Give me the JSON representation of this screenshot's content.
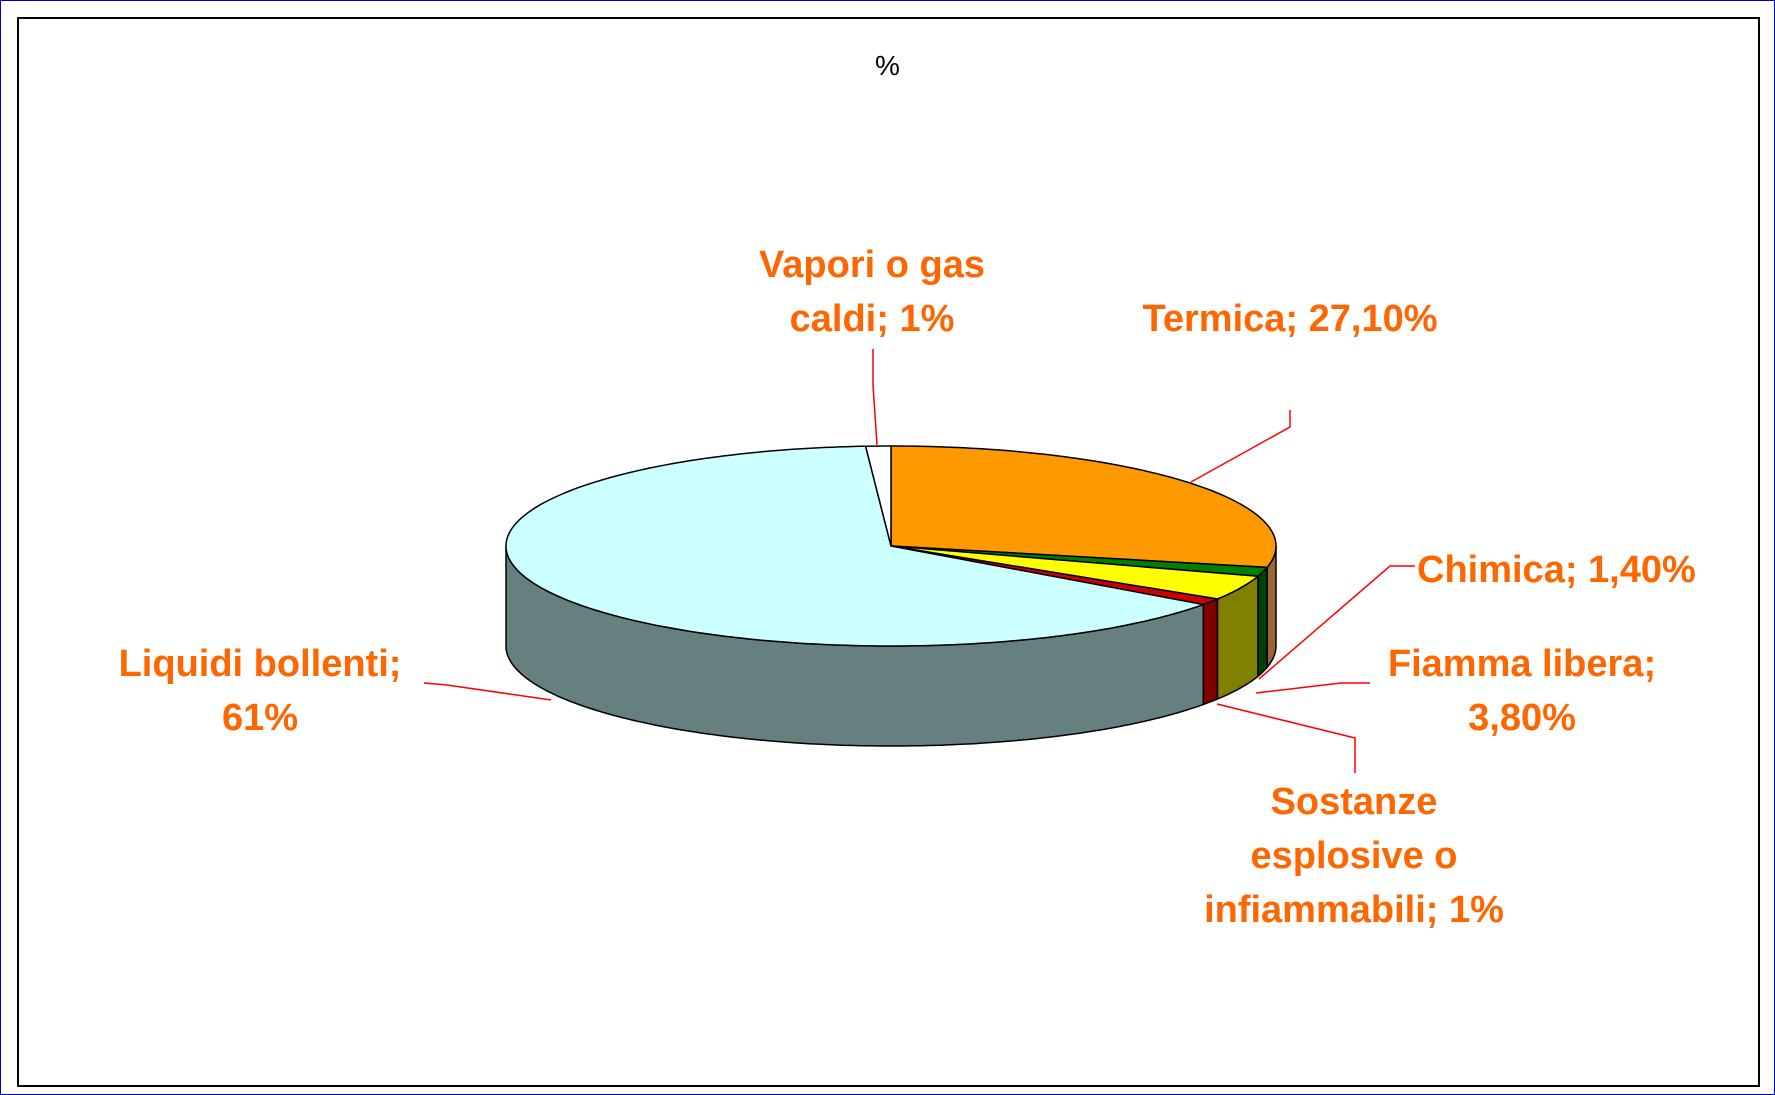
{
  "chart_data": {
    "type": "pie3d",
    "title": "%",
    "categories": [
      "Termica;",
      "Chimica;",
      "Fiamma libera;",
      "Sostanze esplosive o infiammabili;",
      "Liquidi bollenti;",
      "Vapori o gas caldi;"
    ],
    "values": [
      27.1,
      1.4,
      3.8,
      1,
      61,
      1
    ],
    "value_labels": [
      "27,10%",
      "1,40%",
      "3,80%",
      "1%",
      "61%",
      "1%"
    ],
    "colors": [
      "#FF9900",
      "#008000",
      "#FFFF00",
      "#CC0000",
      "#CCFFFF",
      "#FFFFFF"
    ],
    "side_colors": [
      "#996633",
      "#004000",
      "#808000",
      "#800000",
      "#668080",
      "#808080"
    ]
  }
}
